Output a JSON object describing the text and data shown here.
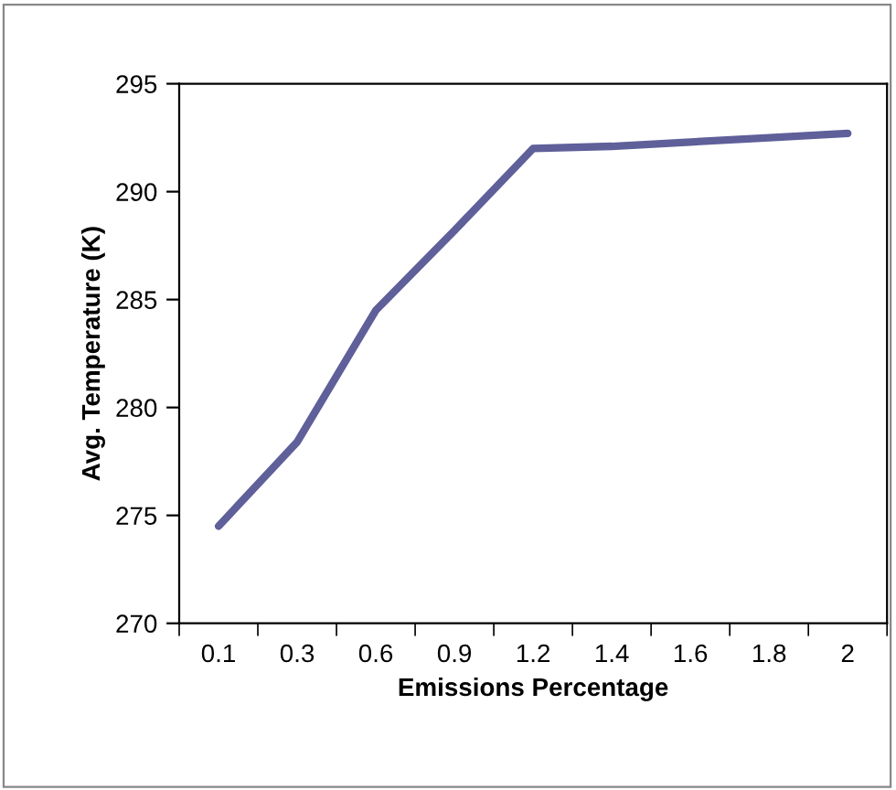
{
  "chart_data": {
    "type": "line",
    "xlabel": "Emissions Percentage",
    "ylabel": "Avg. Temperature (K)",
    "categories": [
      "0.1",
      "0.3",
      "0.6",
      "0.9",
      "1.2",
      "1.4",
      "1.6",
      "1.8",
      "2"
    ],
    "series": [
      {
        "color": "#5f5f9a",
        "values": [
          274.5,
          278.4,
          284.5,
          288.2,
          292.0,
          292.1,
          292.3,
          292.5,
          292.7
        ]
      }
    ],
    "ylim": [
      270,
      295
    ],
    "yticks": [
      270,
      275,
      280,
      285,
      290,
      295
    ],
    "grid": false,
    "legend": false,
    "marker": "none",
    "line_style": "solid"
  }
}
